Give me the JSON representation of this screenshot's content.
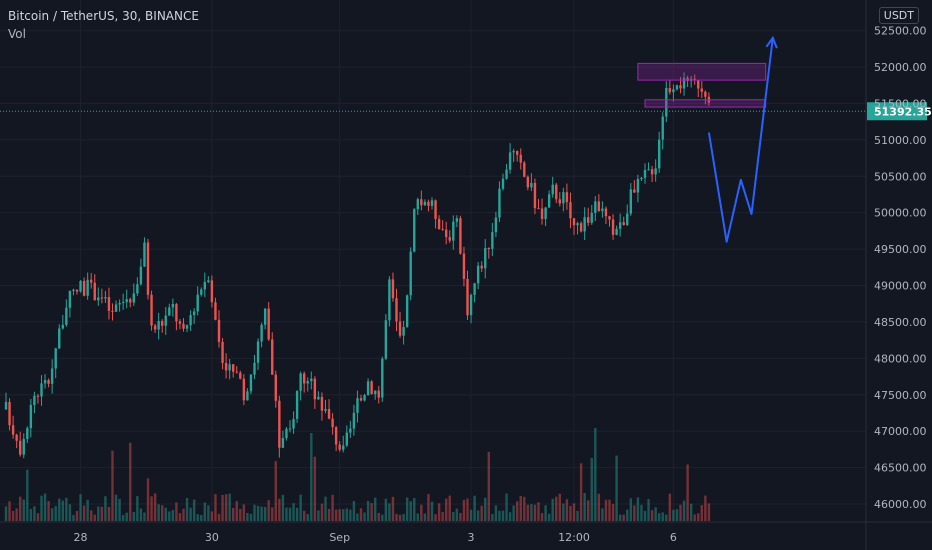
{
  "header": {
    "symbol": "Bitcoin / TetherUS, 30, BINANCE",
    "volume_label": "Vol",
    "currency": "USDT"
  },
  "chart_data": {
    "type": "candlestick",
    "y_ticks": [
      {
        "value": 46000,
        "label": "46000.00"
      },
      {
        "value": 46500,
        "label": "46500.00"
      },
      {
        "value": 47000,
        "label": "47000.00"
      },
      {
        "value": 47500,
        "label": "47500.00"
      },
      {
        "value": 48000,
        "label": "48000.00"
      },
      {
        "value": 48500,
        "label": "48500.00"
      },
      {
        "value": 49000,
        "label": "49000.00"
      },
      {
        "value": 49500,
        "label": "49500.00"
      },
      {
        "value": 50000,
        "label": "50000.00"
      },
      {
        "value": 50500,
        "label": "50500.00"
      },
      {
        "value": 51000,
        "label": "51000.00"
      },
      {
        "value": 51500,
        "label": "51500.00"
      },
      {
        "value": 52000,
        "label": "52000.00"
      },
      {
        "value": 52500,
        "label": "52500.00"
      }
    ],
    "x_ticks": [
      {
        "index": 21,
        "label": "28"
      },
      {
        "index": 58,
        "label": "30"
      },
      {
        "index": 94,
        "label": "Sep"
      },
      {
        "index": 131,
        "label": "3"
      },
      {
        "index": 160,
        "label": "12:00"
      },
      {
        "index": 188,
        "label": "6"
      }
    ],
    "last_price": {
      "value": 51392.35,
      "label": "51392.35"
    },
    "price_path": [
      [
        0,
        47300
      ],
      [
        4,
        46800
      ],
      [
        8,
        47500
      ],
      [
        12,
        47700
      ],
      [
        15,
        48400
      ],
      [
        18,
        48800
      ],
      [
        21,
        49000
      ],
      [
        26,
        48900
      ],
      [
        30,
        48600
      ],
      [
        33,
        48800
      ],
      [
        36,
        48900
      ],
      [
        39,
        49500
      ],
      [
        41,
        48400
      ],
      [
        44,
        48500
      ],
      [
        47,
        48700
      ],
      [
        50,
        48300
      ],
      [
        54,
        48900
      ],
      [
        57,
        49200
      ],
      [
        59,
        48500
      ],
      [
        61,
        48000
      ],
      [
        64,
        47800
      ],
      [
        67,
        47500
      ],
      [
        70,
        48000
      ],
      [
        73,
        48600
      ],
      [
        75,
        47800
      ],
      [
        77,
        46800
      ],
      [
        80,
        47000
      ],
      [
        83,
        47800
      ],
      [
        86,
        47600
      ],
      [
        89,
        47400
      ],
      [
        92,
        47000
      ],
      [
        95,
        46700
      ],
      [
        98,
        47200
      ],
      [
        102,
        47700
      ],
      [
        105,
        47500
      ],
      [
        108,
        49000
      ],
      [
        111,
        48200
      ],
      [
        113,
        48800
      ],
      [
        115,
        50000
      ],
      [
        118,
        50200
      ],
      [
        121,
        50000
      ],
      [
        124,
        49700
      ],
      [
        127,
        49800
      ],
      [
        130,
        48700
      ],
      [
        133,
        49200
      ],
      [
        136,
        49600
      ],
      [
        139,
        50200
      ],
      [
        142,
        50900
      ],
      [
        145,
        50600
      ],
      [
        148,
        50300
      ],
      [
        151,
        49900
      ],
      [
        154,
        50300
      ],
      [
        157,
        50200
      ],
      [
        160,
        49800
      ],
      [
        163,
        49900
      ],
      [
        167,
        50100
      ],
      [
        170,
        49800
      ],
      [
        173,
        49800
      ],
      [
        176,
        50200
      ],
      [
        180,
        50500
      ],
      [
        183,
        50700
      ],
      [
        185,
        51400
      ],
      [
        186,
        51700
      ],
      [
        189,
        51850
      ],
      [
        192,
        51700
      ],
      [
        195,
        51800
      ],
      [
        197,
        51700
      ],
      [
        198,
        51392
      ]
    ],
    "volume_scale_note": "",
    "zones": [
      {
        "from_index": 178,
        "to_index": 214,
        "low": 51820,
        "high": 52050,
        "color": "#9c27b0"
      },
      {
        "from_index": 180,
        "to_index": 214,
        "low": 51450,
        "high": 51550,
        "color": "#9c27b0"
      }
    ],
    "projection": [
      {
        "index": 198,
        "price": 51100
      },
      {
        "index": 203,
        "price": 49600
      },
      {
        "index": 207,
        "price": 50450
      },
      {
        "index": 210,
        "price": 49980
      },
      {
        "index": 216,
        "price": 52400
      }
    ],
    "colors": {
      "up": "#26a69a",
      "down": "#ef5350",
      "projection": "#2962ff",
      "zone": "#9c27b0",
      "last_price": "#26a69a"
    }
  }
}
